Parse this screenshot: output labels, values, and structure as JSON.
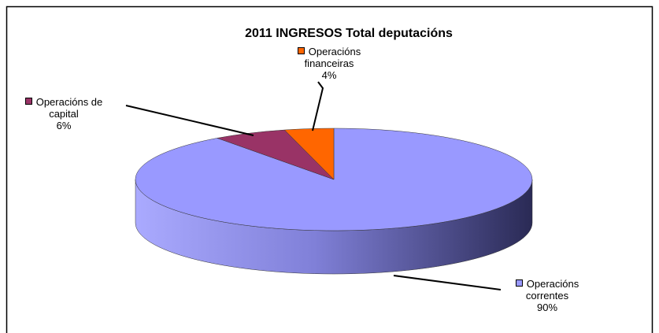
{
  "chart_data": {
    "type": "pie",
    "title": "2011 INGRESOS Total deputacións",
    "categories": [
      "Operacións correntes",
      "Operacións de capital",
      "Operacións financeiras"
    ],
    "values": [
      90,
      6,
      4
    ],
    "value_labels": [
      "90%",
      "6%",
      "4%"
    ],
    "colors": [
      "#9999ff",
      "#993366",
      "#ff6600"
    ]
  }
}
